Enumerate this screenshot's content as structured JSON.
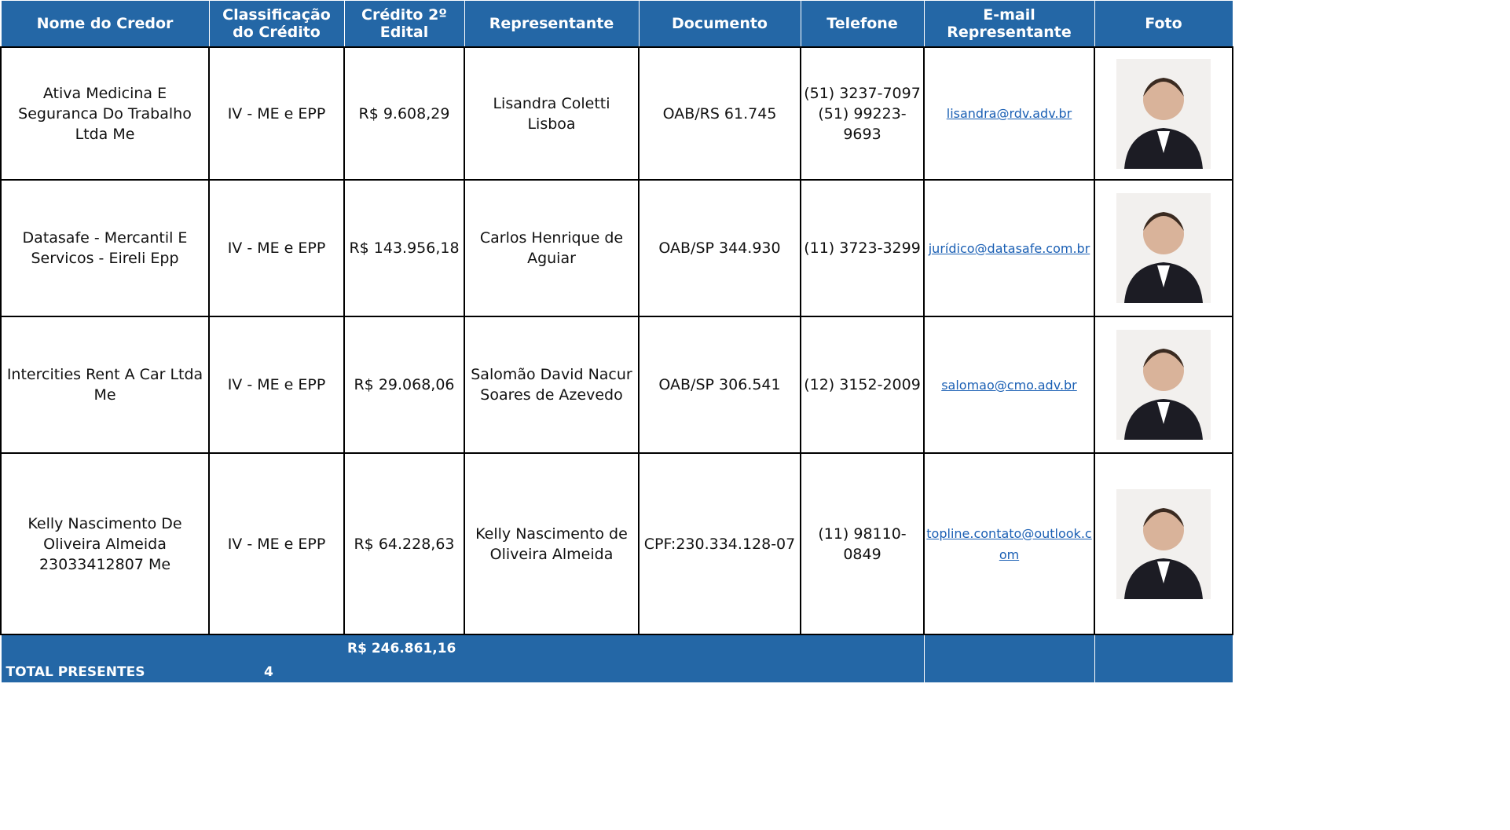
{
  "table": {
    "columns": [
      "Nome do Credor",
      "Classificação do Crédito",
      "Crédito 2º Edital",
      "Representante",
      "Documento",
      "Telefone",
      "E-mail Representante",
      "Foto"
    ],
    "rows": [
      {
        "creditor": "Ativa Medicina E Seguranca Do Trabalho Ltda Me",
        "classification": "IV - ME e EPP",
        "credit": "R$ 9.608,29",
        "representative": "Lisandra Coletti Lisboa",
        "document": "OAB/RS 61.745",
        "phone": "(51) 3237-7097 (51) 99223-9693",
        "email": "lisandra@rdv.adv.br"
      },
      {
        "creditor": "Datasafe - Mercantil E Servicos - Eireli Epp",
        "classification": "IV - ME e EPP",
        "credit": "R$ 143.956,18",
        "representative": "Carlos Henrique de Aguiar",
        "document": "OAB/SP 344.930",
        "phone": "(11) 3723-3299",
        "email": "jurídico@datasafe.com.br"
      },
      {
        "creditor": "Intercities Rent A Car Ltda Me",
        "classification": "IV - ME e EPP",
        "credit": "R$ 29.068,06",
        "representative": "Salomão David Nacur Soares de Azevedo",
        "document": "OAB/SP 306.541",
        "phone": "(12) 3152-2009",
        "email": "salomao@cmo.adv.br"
      },
      {
        "creditor": "Kelly Nascimento De Oliveira Almeida 23033412807 Me",
        "classification": "IV - ME e EPP",
        "credit": "R$ 64.228,63",
        "representative": "Kelly Nascimento de Oliveira Almeida",
        "document": "CPF:230.334.128-07",
        "phone": "(11) 98110-0849",
        "email": "topline.contato@outlook.com"
      }
    ],
    "total": {
      "label": "TOTAL PRESENTES",
      "count": 4,
      "amount": "R$ 246.861,16"
    }
  }
}
